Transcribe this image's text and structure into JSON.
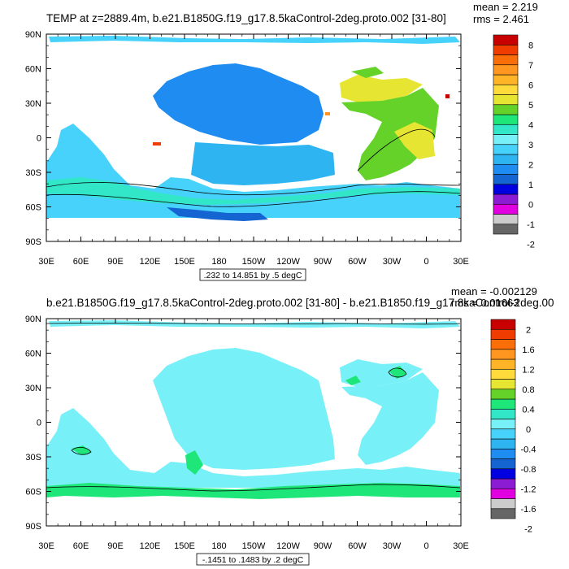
{
  "colors": {
    "land": "#ffffff",
    "frame": "#000000",
    "palette": [
      "#666666",
      "#cccccc",
      "#e000e0",
      "#8c1cd4",
      "#0000e0",
      "#1464d2",
      "#1e8cf0",
      "#2eb4f0",
      "#46d2fa",
      "#78f0f8",
      "#32e6c8",
      "#1ee678",
      "#64d228",
      "#e6e632",
      "#ffdc3c",
      "#ffb428",
      "#ff9620",
      "#fa6e0a",
      "#f03c00",
      "#c80000"
    ]
  },
  "panels": [
    {
      "title": "TEMP at z=2889.4m, b.e21.B1850G.f19_g17.8.5kaControl-2deg.proto.002 [31-80]",
      "stats": [
        "mean = 2.219",
        "rms = 2.461"
      ],
      "contour_info": ".232 to 14.851 by .5 degC",
      "lat_labels": [
        "90N",
        "60N",
        "30N",
        "0",
        "30S",
        "60S",
        "90S"
      ],
      "lon_labels": [
        "30E",
        "60E",
        "90E",
        "120E",
        "150E",
        "180",
        "150W",
        "120W",
        "90W",
        "60W",
        "30W",
        "0",
        "30E"
      ],
      "colorbar_labels": [
        "8",
        "7",
        "6",
        "5",
        "4",
        "3",
        "2",
        "1",
        "0",
        "-1",
        "-2"
      ]
    },
    {
      "title": "b.e21.B1850G.f19_g17.8.5kaControl-2deg.proto.002 [31-80] - b.e21.B1850.f19_g17.8kaControl-2deg.00",
      "stats": [
        "mean = -0.002129",
        "rms = 0.01663"
      ],
      "contour_info": "-.1451 to .1483 by .2 degC",
      "lat_labels": [
        "90N",
        "60N",
        "30N",
        "0",
        "30S",
        "60S",
        "90S"
      ],
      "lon_labels": [
        "30E",
        "60E",
        "90E",
        "120E",
        "150E",
        "180",
        "150W",
        "120W",
        "90W",
        "60W",
        "30W",
        "0",
        "30E"
      ],
      "colorbar_labels": [
        "2",
        "1.6",
        "1.2",
        "0.8",
        "0.4",
        "0",
        "-0.4",
        "-0.8",
        "-1.2",
        "-1.6",
        "-2"
      ]
    }
  ],
  "chart_data": [
    {
      "type": "heatmap",
      "title": "TEMP at z=2889.4m, b.e21.B1850G.f19_g17.8.5kaControl-2deg.proto.002 [31-80]",
      "xlabel": "",
      "ylabel": "",
      "x_ticks": [
        "30E",
        "60E",
        "90E",
        "120E",
        "150E",
        "180",
        "150W",
        "120W",
        "90W",
        "60W",
        "30W",
        "0",
        "30E"
      ],
      "y_ticks": [
        "90N",
        "60N",
        "30N",
        "0",
        "30S",
        "60S",
        "90S"
      ],
      "colorbar": {
        "min": -2,
        "max": 8,
        "step": 0.5
      },
      "annotations": [
        "mean = 2.219",
        "rms = 2.461",
        ".232 to 14.851 by .5 degC"
      ]
    },
    {
      "type": "heatmap",
      "title": "b.e21.B1850G.f19_g17.8.5kaControl-2deg.proto.002 [31-80] - b.e21.B1850.f19_g17.8kaControl-2deg.00",
      "xlabel": "",
      "ylabel": "",
      "x_ticks": [
        "30E",
        "60E",
        "90E",
        "120E",
        "150E",
        "180",
        "150W",
        "120W",
        "90W",
        "60W",
        "30W",
        "0",
        "30E"
      ],
      "y_ticks": [
        "90N",
        "60N",
        "30N",
        "0",
        "30S",
        "60S",
        "90S"
      ],
      "colorbar": {
        "min": -2,
        "max": 2,
        "step": 0.2
      },
      "annotations": [
        "mean = -0.002129",
        "rms = 0.01663",
        "-.1451 to .1483 by .2 degC"
      ]
    }
  ]
}
